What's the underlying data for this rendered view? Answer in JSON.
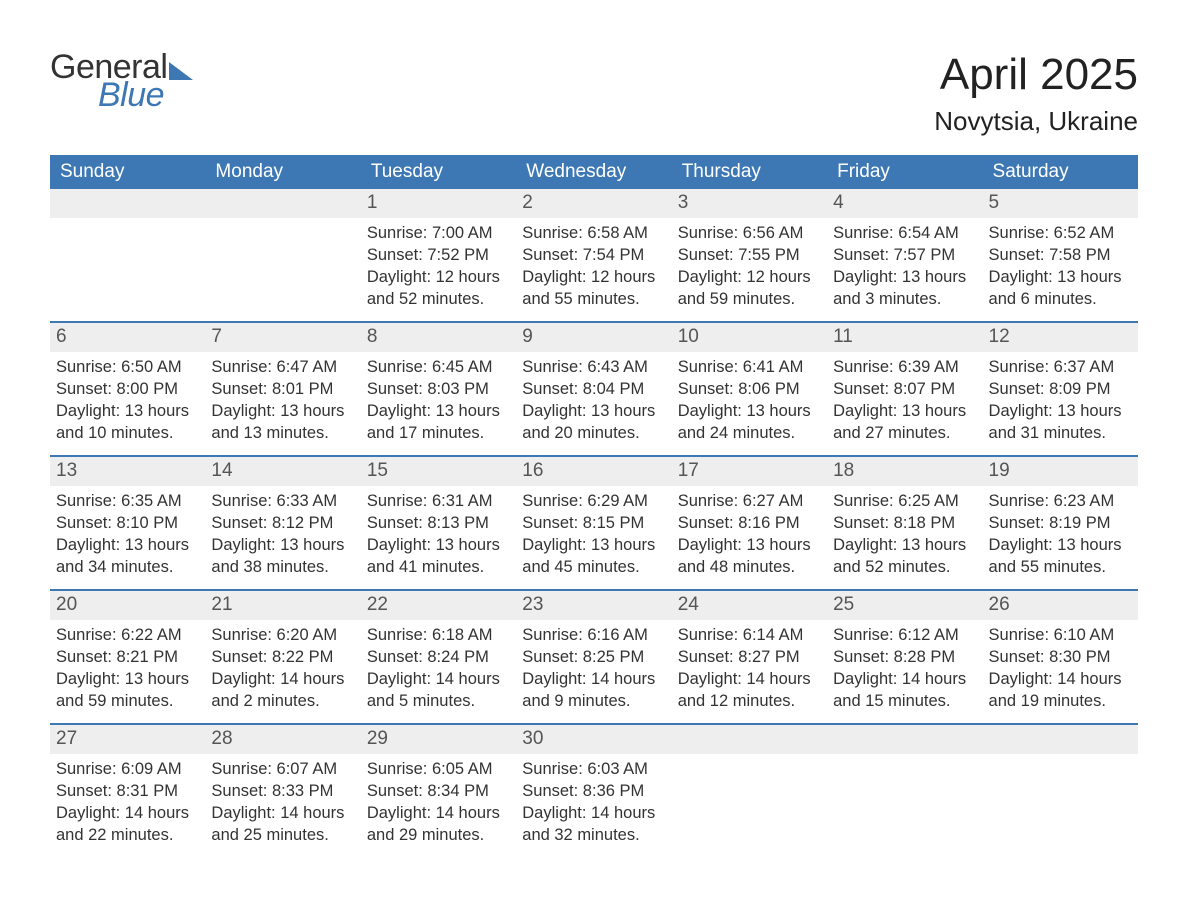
{
  "logo": {
    "word1": "General",
    "word2": "Blue"
  },
  "title": {
    "month": "April 2025",
    "location": "Novytsia, Ukraine"
  },
  "colors": {
    "header_bg": "#3d78b4",
    "header_text": "#ffffff",
    "daynum_bg": "#eeeeee",
    "rule": "#3d78b4",
    "body_text": "#333333",
    "logo_dark": "#333333",
    "logo_blue": "#3d78b4",
    "page_bg": "#ffffff"
  },
  "weekdays": [
    "Sunday",
    "Monday",
    "Tuesday",
    "Wednesday",
    "Thursday",
    "Friday",
    "Saturday"
  ],
  "weeks": [
    [
      null,
      null,
      {
        "n": "1",
        "sunrise": "Sunrise: 7:00 AM",
        "sunset": "Sunset: 7:52 PM",
        "daylight": "Daylight: 12 hours and 52 minutes."
      },
      {
        "n": "2",
        "sunrise": "Sunrise: 6:58 AM",
        "sunset": "Sunset: 7:54 PM",
        "daylight": "Daylight: 12 hours and 55 minutes."
      },
      {
        "n": "3",
        "sunrise": "Sunrise: 6:56 AM",
        "sunset": "Sunset: 7:55 PM",
        "daylight": "Daylight: 12 hours and 59 minutes."
      },
      {
        "n": "4",
        "sunrise": "Sunrise: 6:54 AM",
        "sunset": "Sunset: 7:57 PM",
        "daylight": "Daylight: 13 hours and 3 minutes."
      },
      {
        "n": "5",
        "sunrise": "Sunrise: 6:52 AM",
        "sunset": "Sunset: 7:58 PM",
        "daylight": "Daylight: 13 hours and 6 minutes."
      }
    ],
    [
      {
        "n": "6",
        "sunrise": "Sunrise: 6:50 AM",
        "sunset": "Sunset: 8:00 PM",
        "daylight": "Daylight: 13 hours and 10 minutes."
      },
      {
        "n": "7",
        "sunrise": "Sunrise: 6:47 AM",
        "sunset": "Sunset: 8:01 PM",
        "daylight": "Daylight: 13 hours and 13 minutes."
      },
      {
        "n": "8",
        "sunrise": "Sunrise: 6:45 AM",
        "sunset": "Sunset: 8:03 PM",
        "daylight": "Daylight: 13 hours and 17 minutes."
      },
      {
        "n": "9",
        "sunrise": "Sunrise: 6:43 AM",
        "sunset": "Sunset: 8:04 PM",
        "daylight": "Daylight: 13 hours and 20 minutes."
      },
      {
        "n": "10",
        "sunrise": "Sunrise: 6:41 AM",
        "sunset": "Sunset: 8:06 PM",
        "daylight": "Daylight: 13 hours and 24 minutes."
      },
      {
        "n": "11",
        "sunrise": "Sunrise: 6:39 AM",
        "sunset": "Sunset: 8:07 PM",
        "daylight": "Daylight: 13 hours and 27 minutes."
      },
      {
        "n": "12",
        "sunrise": "Sunrise: 6:37 AM",
        "sunset": "Sunset: 8:09 PM",
        "daylight": "Daylight: 13 hours and 31 minutes."
      }
    ],
    [
      {
        "n": "13",
        "sunrise": "Sunrise: 6:35 AM",
        "sunset": "Sunset: 8:10 PM",
        "daylight": "Daylight: 13 hours and 34 minutes."
      },
      {
        "n": "14",
        "sunrise": "Sunrise: 6:33 AM",
        "sunset": "Sunset: 8:12 PM",
        "daylight": "Daylight: 13 hours and 38 minutes."
      },
      {
        "n": "15",
        "sunrise": "Sunrise: 6:31 AM",
        "sunset": "Sunset: 8:13 PM",
        "daylight": "Daylight: 13 hours and 41 minutes."
      },
      {
        "n": "16",
        "sunrise": "Sunrise: 6:29 AM",
        "sunset": "Sunset: 8:15 PM",
        "daylight": "Daylight: 13 hours and 45 minutes."
      },
      {
        "n": "17",
        "sunrise": "Sunrise: 6:27 AM",
        "sunset": "Sunset: 8:16 PM",
        "daylight": "Daylight: 13 hours and 48 minutes."
      },
      {
        "n": "18",
        "sunrise": "Sunrise: 6:25 AM",
        "sunset": "Sunset: 8:18 PM",
        "daylight": "Daylight: 13 hours and 52 minutes."
      },
      {
        "n": "19",
        "sunrise": "Sunrise: 6:23 AM",
        "sunset": "Sunset: 8:19 PM",
        "daylight": "Daylight: 13 hours and 55 minutes."
      }
    ],
    [
      {
        "n": "20",
        "sunrise": "Sunrise: 6:22 AM",
        "sunset": "Sunset: 8:21 PM",
        "daylight": "Daylight: 13 hours and 59 minutes."
      },
      {
        "n": "21",
        "sunrise": "Sunrise: 6:20 AM",
        "sunset": "Sunset: 8:22 PM",
        "daylight": "Daylight: 14 hours and 2 minutes."
      },
      {
        "n": "22",
        "sunrise": "Sunrise: 6:18 AM",
        "sunset": "Sunset: 8:24 PM",
        "daylight": "Daylight: 14 hours and 5 minutes."
      },
      {
        "n": "23",
        "sunrise": "Sunrise: 6:16 AM",
        "sunset": "Sunset: 8:25 PM",
        "daylight": "Daylight: 14 hours and 9 minutes."
      },
      {
        "n": "24",
        "sunrise": "Sunrise: 6:14 AM",
        "sunset": "Sunset: 8:27 PM",
        "daylight": "Daylight: 14 hours and 12 minutes."
      },
      {
        "n": "25",
        "sunrise": "Sunrise: 6:12 AM",
        "sunset": "Sunset: 8:28 PM",
        "daylight": "Daylight: 14 hours and 15 minutes."
      },
      {
        "n": "26",
        "sunrise": "Sunrise: 6:10 AM",
        "sunset": "Sunset: 8:30 PM",
        "daylight": "Daylight: 14 hours and 19 minutes."
      }
    ],
    [
      {
        "n": "27",
        "sunrise": "Sunrise: 6:09 AM",
        "sunset": "Sunset: 8:31 PM",
        "daylight": "Daylight: 14 hours and 22 minutes."
      },
      {
        "n": "28",
        "sunrise": "Sunrise: 6:07 AM",
        "sunset": "Sunset: 8:33 PM",
        "daylight": "Daylight: 14 hours and 25 minutes."
      },
      {
        "n": "29",
        "sunrise": "Sunrise: 6:05 AM",
        "sunset": "Sunset: 8:34 PM",
        "daylight": "Daylight: 14 hours and 29 minutes."
      },
      {
        "n": "30",
        "sunrise": "Sunrise: 6:03 AM",
        "sunset": "Sunset: 8:36 PM",
        "daylight": "Daylight: 14 hours and 32 minutes."
      },
      null,
      null,
      null
    ]
  ]
}
